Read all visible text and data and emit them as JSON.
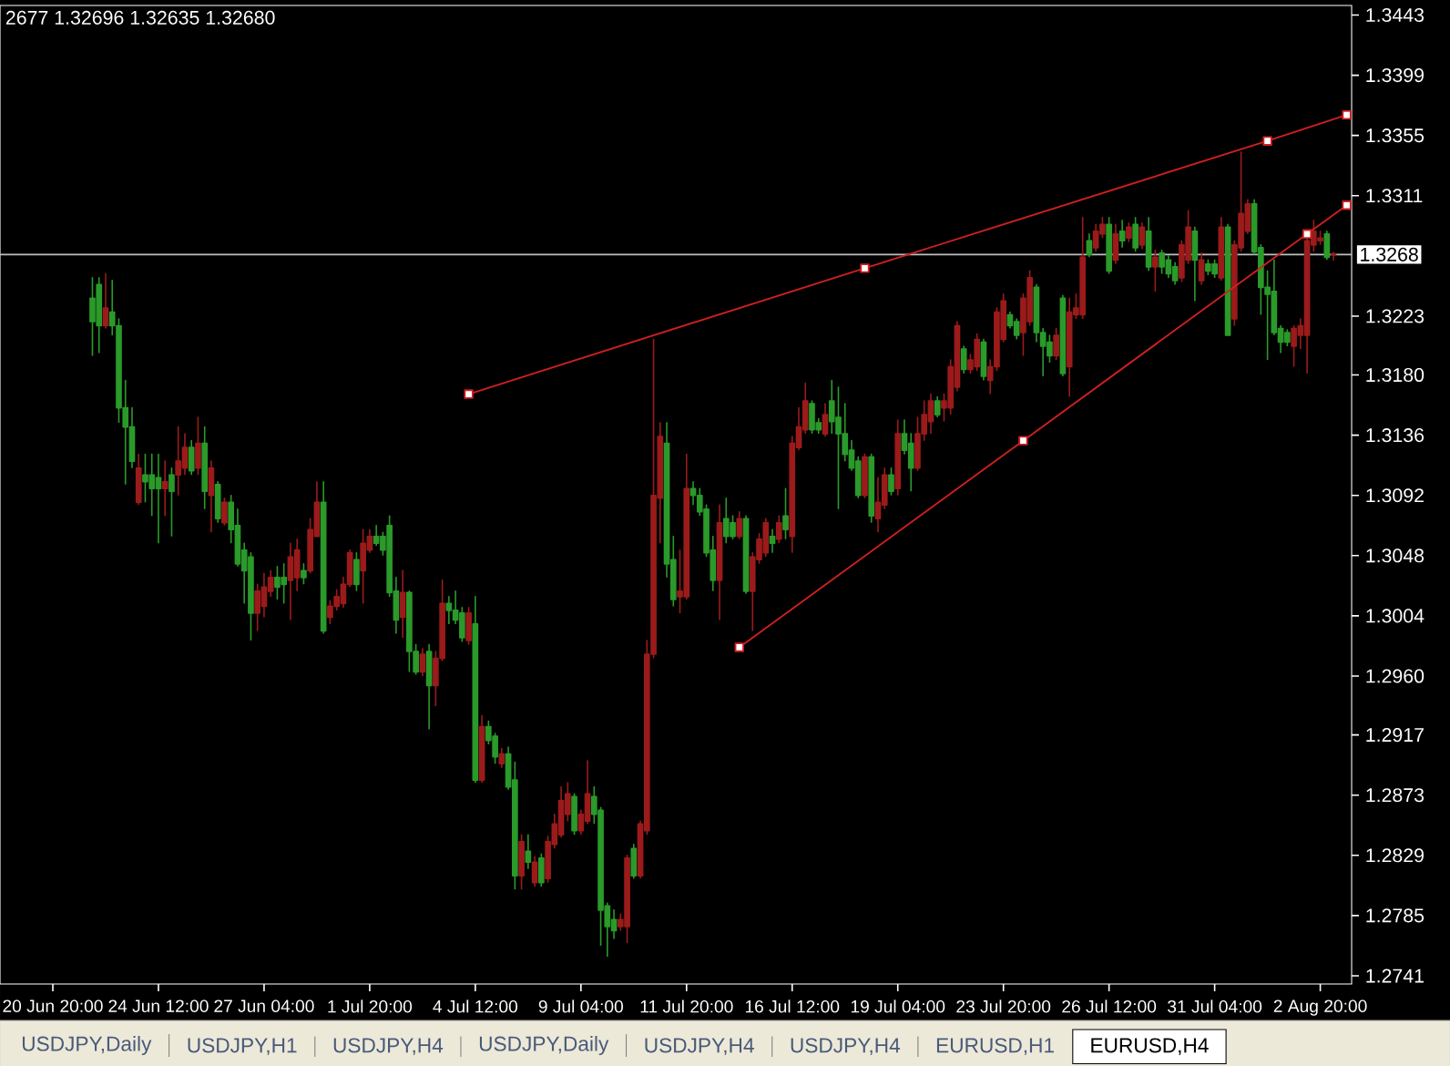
{
  "chart_data": {
    "type": "candlestick",
    "categories": [
      "20 Jun 20:00",
      null,
      null,
      null,
      null,
      null,
      null,
      null,
      null,
      null,
      null,
      null,
      null,
      null,
      null,
      null,
      "24 Jun 12:00",
      null,
      null,
      null,
      null,
      null,
      null,
      null,
      null,
      null,
      null,
      null,
      null,
      null,
      null,
      null,
      "27 Jun 04:00",
      null,
      null,
      null,
      null,
      null,
      null,
      null,
      null,
      null,
      null,
      null,
      null,
      null,
      null,
      null,
      "1 Jul 20:00",
      null,
      null,
      null,
      null,
      null,
      null,
      null,
      null,
      null,
      null,
      null,
      null,
      null,
      null,
      null,
      "4 Jul 12:00",
      null,
      null,
      null,
      null,
      null,
      null,
      null,
      null,
      null,
      null,
      null,
      null,
      null,
      null,
      null,
      "9 Jul 04:00",
      null,
      null,
      null,
      null,
      null,
      null,
      null,
      null,
      null,
      null,
      null,
      null,
      null,
      null,
      null,
      "11 Jul 20:00",
      null,
      null,
      null,
      null,
      null,
      null,
      null,
      null,
      null,
      null,
      null,
      null,
      null,
      null,
      null,
      "16 Jul 12:00",
      null,
      null,
      null,
      null,
      null,
      null,
      null,
      null,
      null,
      null,
      null,
      null,
      null,
      null,
      null,
      "19 Jul 04:00",
      null,
      null,
      null,
      null,
      null,
      null,
      null,
      null,
      null,
      null,
      null,
      null,
      null,
      null,
      null,
      "23 Jul 20:00",
      null,
      null,
      null,
      null,
      null,
      null,
      null,
      null,
      null,
      null,
      null,
      null,
      null,
      null,
      null,
      "26 Jul 12:00",
      null,
      null,
      null,
      null,
      null,
      null,
      null,
      null,
      null,
      null,
      null,
      null,
      null,
      null,
      null,
      "31 Jul 04:00",
      null,
      null,
      null,
      null,
      null,
      null,
      null,
      null,
      null,
      null,
      null,
      null,
      null,
      null,
      null,
      "2 Aug 20:00",
      null,
      null,
      null,
      null
    ],
    "ohlc": [
      null,
      null,
      null,
      null,
      null,
      null,
      [
        1.3236,
        1.3251,
        1.3194,
        1.3219
      ],
      [
        1.3246,
        1.3251,
        1.3196,
        1.3216
      ],
      [
        1.3216,
        1.3254,
        1.3214,
        1.3229
      ],
      [
        1.3226,
        1.3249,
        1.3209,
        1.3216
      ],
      [
        1.3216,
        1.3221,
        1.3145,
        1.3156
      ],
      [
        1.3156,
        1.3176,
        1.31,
        1.3142
      ],
      [
        1.3142,
        1.3156,
        1.3112,
        1.3117
      ],
      [
        1.3087,
        1.3122,
        1.3085,
        1.3112
      ],
      [
        1.3107,
        1.3122,
        1.3087,
        1.3102
      ],
      [
        1.3107,
        1.3122,
        1.3077,
        1.3097
      ],
      [
        1.3105,
        1.3122,
        1.3057,
        1.3097
      ],
      [
        1.3097,
        1.3117,
        1.3077,
        1.3102
      ],
      [
        1.3107,
        1.3112,
        1.3062,
        1.3095
      ],
      [
        1.3107,
        1.3142,
        1.3092,
        1.3117
      ],
      [
        1.3112,
        1.3137,
        1.3107,
        1.3127
      ],
      [
        1.3127,
        1.3132,
        1.3107,
        1.311
      ],
      [
        1.3112,
        1.3149,
        1.3107,
        1.313
      ],
      [
        1.313,
        1.3142,
        1.3082,
        1.3095
      ],
      [
        1.3092,
        1.3117,
        1.3065,
        1.3112
      ],
      [
        1.31,
        1.3102,
        1.3072,
        1.3075
      ],
      [
        1.3072,
        1.309,
        1.307,
        1.3087
      ],
      [
        1.3087,
        1.3092,
        1.3057,
        1.3067
      ],
      [
        1.307,
        1.3082,
        1.304,
        1.3042
      ],
      [
        1.3052,
        1.3057,
        1.3013,
        1.3037
      ],
      [
        1.3047,
        1.305,
        1.2986,
        1.3006
      ],
      [
        1.3006,
        1.3027,
        1.2993,
        1.3022
      ],
      [
        1.3011,
        1.3035,
        1.3003,
        1.3025
      ],
      [
        1.3022,
        1.3037,
        1.3018,
        1.3032
      ],
      [
        1.3032,
        1.304,
        1.3016,
        1.3025
      ],
      [
        1.3032,
        1.3042,
        1.3013,
        1.3027
      ],
      [
        1.303,
        1.3057,
        1.3001,
        1.3047
      ],
      [
        1.3032,
        1.306,
        1.3022,
        1.3052
      ],
      [
        1.3037,
        1.3042,
        1.3027,
        1.3032
      ],
      [
        1.3037,
        1.3075,
        1.3035,
        1.3067
      ],
      [
        1.3062,
        1.3102,
        1.3062,
        1.3087
      ],
      [
        1.3087,
        1.3102,
        1.2991,
        1.2993
      ],
      [
        1.3003,
        1.3015,
        1.2998,
        1.3011
      ],
      [
        1.3011,
        1.3023,
        1.3008,
        1.3018
      ],
      [
        1.3013,
        1.3032,
        1.301,
        1.3027
      ],
      [
        1.3027,
        1.3052,
        1.3025,
        1.305
      ],
      [
        1.3045,
        1.305,
        1.3022,
        1.3027
      ],
      [
        1.3037,
        1.3067,
        1.3013,
        1.3057
      ],
      [
        1.3052,
        1.3067,
        1.305,
        1.3062
      ],
      [
        1.3062,
        1.307,
        1.3055,
        1.3057
      ],
      [
        1.3062,
        1.3065,
        1.3048,
        1.3052
      ],
      [
        1.307,
        1.3077,
        1.3018,
        1.3021
      ],
      [
        1.3022,
        1.3032,
        1.2991,
        1.3001
      ],
      [
        1.3003,
        1.3037,
        1.2988,
        1.3021
      ],
      [
        1.3021,
        1.3022,
        1.2963,
        1.2978
      ],
      [
        1.2978,
        1.2983,
        1.2961,
        1.2963
      ],
      [
        1.2963,
        1.298,
        1.296,
        1.2976
      ],
      [
        1.2978,
        1.2983,
        1.2921,
        1.2953
      ],
      [
        1.2953,
        1.2978,
        1.2938,
        1.2973
      ],
      [
        1.2973,
        1.303,
        1.2971,
        1.3013
      ],
      [
        1.3013,
        1.3018,
        1.2998,
        1.3008
      ],
      [
        1.3008,
        1.3022,
        1.2998,
        1.3001
      ],
      [
        1.3006,
        1.301,
        1.2985,
        1.2988
      ],
      [
        1.2986,
        1.301,
        1.2983,
        1.3006
      ],
      [
        1.2998,
        1.3018,
        1.2882,
        1.2884
      ],
      [
        1.2884,
        1.2931,
        1.2882,
        1.2923
      ],
      [
        1.2923,
        1.2927,
        1.291,
        1.2913
      ],
      [
        1.2916,
        1.2918,
        1.2896,
        1.2901
      ],
      [
        1.2896,
        1.2907,
        1.2893,
        1.2903
      ],
      [
        1.2903,
        1.2908,
        1.2877,
        1.2879
      ],
      [
        1.2884,
        1.2897,
        1.2804,
        1.2814
      ],
      [
        1.2814,
        1.2844,
        1.2804,
        1.2839
      ],
      [
        1.2832,
        1.2844,
        1.2819,
        1.2824
      ],
      [
        1.2809,
        1.2828,
        1.2806,
        1.2824
      ],
      [
        1.2827,
        1.283,
        1.2806,
        1.2809
      ],
      [
        1.2812,
        1.2843,
        1.2809,
        1.2839
      ],
      [
        1.2837,
        1.2859,
        1.2834,
        1.2852
      ],
      [
        1.2844,
        1.2879,
        1.2842,
        1.2869
      ],
      [
        1.2859,
        1.2882,
        1.2854,
        1.2874
      ],
      [
        1.2872,
        1.2874,
        1.2844,
        1.2847
      ],
      [
        1.2847,
        1.2862,
        1.2844,
        1.2859
      ],
      [
        1.2854,
        1.2898,
        1.2852,
        1.2874
      ],
      [
        1.2872,
        1.2879,
        1.2852,
        1.2859
      ],
      [
        1.2862,
        1.2864,
        1.2763,
        1.2789
      ],
      [
        1.2792,
        1.2794,
        1.2755,
        1.2777
      ],
      [
        1.2782,
        1.2789,
        1.2768,
        1.2774
      ],
      [
        1.2777,
        1.2786,
        1.2774,
        1.2782
      ],
      [
        1.2777,
        1.2829,
        1.2765,
        1.2827
      ],
      [
        1.2834,
        1.2837,
        1.2812,
        1.2814
      ],
      [
        1.2814,
        1.2854,
        1.2812,
        1.2852
      ],
      [
        1.2847,
        1.2986,
        1.2844,
        1.2976
      ],
      [
        1.2976,
        1.3206,
        1.2973,
        1.3092
      ],
      [
        1.309,
        1.3145,
        1.3057,
        1.3135
      ],
      [
        1.313,
        1.3145,
        1.3032,
        1.3042
      ],
      [
        1.3045,
        1.3062,
        1.3011,
        1.3016
      ],
      [
        1.3018,
        1.3052,
        1.3006,
        1.3022
      ],
      [
        1.3018,
        1.3122,
        1.3016,
        1.3097
      ],
      [
        1.3097,
        1.3102,
        1.3085,
        1.3092
      ],
      [
        1.3092,
        1.3097,
        1.3077,
        1.308
      ],
      [
        1.3082,
        1.3085,
        1.3047,
        1.305
      ],
      [
        1.3052,
        1.3062,
        1.3022,
        1.303
      ],
      [
        1.303,
        1.3085,
        1.3001,
        1.3072
      ],
      [
        1.3075,
        1.309,
        1.3057,
        1.3062
      ],
      [
        1.3072,
        1.3077,
        1.306,
        1.3062
      ],
      [
        1.3062,
        1.308,
        1.306,
        1.3075
      ],
      [
        1.3075,
        1.3077,
        1.302,
        1.3022
      ],
      [
        1.3022,
        1.305,
        1.2993,
        1.3047
      ],
      [
        1.3045,
        1.3064,
        1.3042,
        1.306
      ],
      [
        1.305,
        1.3075,
        1.3047,
        1.3072
      ],
      [
        1.3062,
        1.3067,
        1.305,
        1.3057
      ],
      [
        1.306,
        1.3077,
        1.3057,
        1.3072
      ],
      [
        1.3077,
        1.3097,
        1.306,
        1.3067
      ],
      [
        1.3062,
        1.3135,
        1.305,
        1.313
      ],
      [
        1.3127,
        1.3156,
        1.3125,
        1.3142
      ],
      [
        1.314,
        1.3174,
        1.3137,
        1.3161
      ],
      [
        1.3159,
        1.3161,
        1.3137,
        1.314
      ],
      [
        1.3145,
        1.3148,
        1.3137,
        1.314
      ],
      [
        1.3137,
        1.3159,
        1.3135,
        1.3151
      ],
      [
        1.3161,
        1.3176,
        1.3137,
        1.3146
      ],
      [
        1.3149,
        1.3171,
        1.3082,
        1.3137
      ],
      [
        1.3137,
        1.3159,
        1.3117,
        1.3122
      ],
      [
        1.3125,
        1.3132,
        1.311,
        1.3112
      ],
      [
        1.3117,
        1.312,
        1.309,
        1.3092
      ],
      [
        1.3092,
        1.3122,
        1.309,
        1.312
      ],
      [
        1.312,
        1.3122,
        1.3072,
        1.3077
      ],
      [
        1.3075,
        1.3105,
        1.3065,
        1.3087
      ],
      [
        1.3085,
        1.3112,
        1.3082,
        1.3107
      ],
      [
        1.3107,
        1.3112,
        1.3092,
        1.3095
      ],
      [
        1.3097,
        1.3147,
        1.3092,
        1.3137
      ],
      [
        1.3137,
        1.3147,
        1.3122,
        1.3125
      ],
      [
        1.313,
        1.3137,
        1.3095,
        1.3112
      ],
      [
        1.3112,
        1.3149,
        1.311,
        1.3137
      ],
      [
        1.3137,
        1.3161,
        1.3132,
        1.3151
      ],
      [
        1.3146,
        1.3166,
        1.3137,
        1.3161
      ],
      [
        1.3161,
        1.3164,
        1.3149,
        1.3151
      ],
      [
        1.3156,
        1.3166,
        1.3146,
        1.3161
      ],
      [
        1.3156,
        1.3191,
        1.3151,
        1.3186
      ],
      [
        1.3171,
        1.3219,
        1.3168,
        1.3216
      ],
      [
        1.3199,
        1.3201,
        1.3181,
        1.3184
      ],
      [
        1.3184,
        1.3195,
        1.3181,
        1.3191
      ],
      [
        1.3186,
        1.321,
        1.3183,
        1.3206
      ],
      [
        1.3204,
        1.3206,
        1.3176,
        1.3179
      ],
      [
        1.3176,
        1.3191,
        1.3166,
        1.3186
      ],
      [
        1.3186,
        1.3229,
        1.3183,
        1.3226
      ],
      [
        1.3206,
        1.3239,
        1.3204,
        1.3234
      ],
      [
        1.3224,
        1.3226,
        1.3214,
        1.3216
      ],
      [
        1.3219,
        1.3221,
        1.3206,
        1.3209
      ],
      [
        1.3211,
        1.3239,
        1.3194,
        1.3236
      ],
      [
        1.3219,
        1.3256,
        1.3216,
        1.3251
      ],
      [
        1.3244,
        1.3246,
        1.3204,
        1.3211
      ],
      [
        1.3211,
        1.3214,
        1.3179,
        1.3201
      ],
      [
        1.3204,
        1.3209,
        1.3189,
        1.3194
      ],
      [
        1.3194,
        1.3214,
        1.3191,
        1.3209
      ],
      [
        1.3236,
        1.3238,
        1.3179,
        1.3181
      ],
      [
        1.3186,
        1.3236,
        1.3164,
        1.3226
      ],
      [
        1.3224,
        1.3239,
        1.3221,
        1.3229
      ],
      [
        1.3224,
        1.3295,
        1.3221,
        1.3266
      ],
      [
        1.3278,
        1.3283,
        1.3266,
        1.3268
      ],
      [
        1.3273,
        1.329,
        1.327,
        1.3285
      ],
      [
        1.3283,
        1.3295,
        1.328,
        1.329
      ],
      [
        1.329,
        1.3295,
        1.3254,
        1.3256
      ],
      [
        1.3264,
        1.329,
        1.3261,
        1.3283
      ],
      [
        1.3285,
        1.3293,
        1.3273,
        1.3278
      ],
      [
        1.328,
        1.3291,
        1.3277,
        1.3288
      ],
      [
        1.329,
        1.3295,
        1.327,
        1.3273
      ],
      [
        1.3275,
        1.3291,
        1.3272,
        1.3288
      ],
      [
        1.3285,
        1.3295,
        1.3256,
        1.3259
      ],
      [
        1.3259,
        1.3271,
        1.3241,
        1.3266
      ],
      [
        1.3269,
        1.3271,
        1.3254,
        1.3259
      ],
      [
        1.3264,
        1.3267,
        1.3251,
        1.3254
      ],
      [
        1.3259,
        1.3262,
        1.3246,
        1.3249
      ],
      [
        1.3251,
        1.3278,
        1.3248,
        1.3275
      ],
      [
        1.3264,
        1.33,
        1.3261,
        1.3288
      ],
      [
        1.3285,
        1.3288,
        1.3234,
        1.3264
      ],
      [
        1.3249,
        1.3269,
        1.3246,
        1.3264
      ],
      [
        1.3261,
        1.3264,
        1.3253,
        1.3256
      ],
      [
        1.3261,
        1.3264,
        1.3251,
        1.3254
      ],
      [
        1.3251,
        1.3295,
        1.3249,
        1.3288
      ],
      [
        1.3288,
        1.329,
        1.3209,
        1.3209
      ],
      [
        1.3221,
        1.3278,
        1.3216,
        1.3275
      ],
      [
        1.3273,
        1.3343,
        1.327,
        1.3298
      ],
      [
        1.3285,
        1.3308,
        1.3283,
        1.3305
      ],
      [
        1.3305,
        1.3308,
        1.3268,
        1.327
      ],
      [
        1.3273,
        1.3275,
        1.3224,
        1.3244
      ],
      [
        1.3244,
        1.3256,
        1.3191,
        1.3239
      ],
      [
        1.3241,
        1.3264,
        1.3209,
        1.3211
      ],
      [
        1.3214,
        1.3216,
        1.3196,
        1.3204
      ],
      [
        1.3211,
        1.3213,
        1.3201,
        1.3204
      ],
      [
        1.3201,
        1.3216,
        1.3186,
        1.3214
      ],
      [
        1.3209,
        1.3221,
        1.3199,
        1.3216
      ],
      [
        1.3209,
        1.3283,
        1.3181,
        1.3278
      ],
      [
        1.3275,
        1.3293,
        1.327,
        1.3285
      ],
      [
        1.3278,
        1.3285,
        1.3275,
        1.328
      ],
      [
        1.3283,
        1.3285,
        1.3264,
        1.3266
      ],
      [
        1.32677,
        1.32696,
        1.32635,
        1.3268
      ],
      null,
      null
    ],
    "colors": [
      null,
      null,
      null,
      null,
      null,
      null,
      "#2a9a2a",
      "#2a9a2a",
      "#9b1b1b",
      "#2a9a2a",
      "#2a9a2a",
      "#2a9a2a",
      "#2a9a2a",
      "#9b1b1b",
      "#2a9a2a",
      "#2a9a2a",
      "#2a9a2a",
      "#9b1b1b",
      "#2a9a2a",
      "#9b1b1b",
      "#9b1b1b",
      "#2a9a2a",
      "#9b1b1b",
      "#2a9a2a",
      "#9b1b1b",
      "#2a9a2a",
      "#9b1b1b",
      "#2a9a2a",
      "#2a9a2a",
      "#2a9a2a",
      "#2a9a2a",
      "#9b1b1b",
      "#9b1b1b",
      "#9b1b1b",
      "#2a9a2a",
      "#2a9a2a",
      "#9b1b1b",
      "#9b1b1b",
      "#2a9a2a",
      "#9b1b1b",
      "#9b1b1b",
      "#2a9a2a",
      "#9b1b1b",
      "#9b1b1b",
      "#9b1b1b",
      "#9b1b1b",
      "#2a9a2a",
      "#9b1b1b",
      "#9b1b1b",
      "#2a9a2a",
      "#2a9a2a",
      "#2a9a2a",
      "#2a9a2a",
      "#9b1b1b",
      "#2a9a2a",
      "#2a9a2a",
      "#9b1b1b",
      "#2a9a2a",
      "#9b1b1b",
      "#9b1b1b",
      "#2a9a2a",
      "#2a9a2a",
      "#2a9a2a",
      "#9b1b1b",
      "#2a9a2a",
      "#9b1b1b",
      "#2a9a2a",
      "#2a9a2a",
      "#9b1b1b",
      "#2a9a2a",
      "#2a9a2a",
      "#9b1b1b",
      "#2a9a2a",
      "#9b1b1b",
      "#2a9a2a",
      "#9b1b1b",
      "#9b1b1b",
      "#9b1b1b",
      "#9b1b1b",
      "#2a9a2a",
      "#9b1b1b",
      "#9b1b1b",
      "#2a9a2a",
      "#2a9a2a",
      "#2a9a2a",
      "#2a9a2a",
      "#9b1b1b",
      "#9b1b1b",
      "#2a9a2a",
      "#9b1b1b",
      "#9b1b1b",
      "#9b1b1b",
      "#9b1b1b",
      "#2a9a2a",
      "#2a9a2a",
      "#9b1b1b",
      "#9b1b1b",
      "#2a9a2a",
      "#2a9a2a",
      "#2a9a2a",
      "#2a9a2a",
      "#9b1b1b",
      "#2a9a2a",
      "#2a9a2a",
      "#9b1b1b",
      "#2a9a2a",
      "#9b1b1b",
      "#9b1b1b",
      "#9b1b1b",
      "#2a9a2a",
      "#9b1b1b",
      "#2a9a2a",
      "#9b1b1b",
      "#9b1b1b",
      "#9b1b1b",
      "#2a9a2a",
      "#2a9a2a",
      "#9b1b1b",
      "#2a9a2a",
      "#2a9a2a",
      "#2a9a2a",
      "#2a9a2a",
      "#2a9a2a",
      "#9b1b1b",
      "#2a9a2a",
      "#9b1b1b",
      "#9b1b1b",
      "#2a9a2a",
      "#9b1b1b",
      "#2a9a2a",
      "#2a9a2a",
      "#9b1b1b",
      "#9b1b1b",
      "#9b1b1b",
      "#2a9a2a",
      "#9b1b1b",
      "#9b1b1b",
      "#9b1b1b",
      "#2a9a2a",
      "#9b1b1b",
      "#9b1b1b",
      "#2a9a2a",
      "#9b1b1b",
      "#9b1b1b",
      "#9b1b1b",
      "#2a9a2a",
      "#2a9a2a",
      "#9b1b1b",
      "#9b1b1b",
      "#2a9a2a",
      "#2a9a2a",
      "#2a9a2a",
      "#9b1b1b",
      "#2a9a2a",
      "#9b1b1b",
      "#9b1b1b",
      "#9b1b1b",
      "#2a9a2a",
      "#9b1b1b",
      "#9b1b1b",
      "#2a9a2a",
      "#9b1b1b",
      "#2a9a2a",
      "#9b1b1b",
      "#2a9a2a",
      "#9b1b1b",
      "#2a9a2a",
      "#9b1b1b",
      "#2a9a2a",
      "#2a9a2a",
      "#2a9a2a",
      "#9b1b1b",
      "#9b1b1b",
      "#2a9a2a",
      "#9b1b1b",
      "#2a9a2a",
      "#2a9a2a",
      "#9b1b1b",
      "#2a9a2a",
      "#9b1b1b",
      "#9b1b1b",
      "#9b1b1b",
      "#2a9a2a",
      "#2a9a2a",
      "#2a9a2a",
      "#2a9a2a",
      "#2a9a2a",
      "#2a9a2a",
      "#9b1b1b",
      "#9b1b1b",
      "#9b1b1b",
      "#9b1b1b",
      "#9b1b1b",
      "#2a9a2a",
      "#9b1b1b",
      null,
      null
    ],
    "series": [
      {
        "type": "line",
        "color": "#d02020",
        "values": [
          null,
          null,
          null,
          null,
          null,
          null,
          null,
          null,
          null,
          null,
          null,
          null,
          null,
          null,
          null,
          null,
          null,
          null,
          null,
          null,
          null,
          null,
          null,
          null,
          null,
          null,
          null,
          null,
          null,
          null,
          null,
          null,
          null,
          null,
          null,
          null,
          null,
          null,
          null,
          null,
          null,
          null,
          null,
          null,
          null,
          null,
          null,
          null,
          null,
          null,
          null,
          null,
          null,
          null,
          null,
          null,
          null,
          null,
          null,
          null,
          null,
          null,
          null,
          1.3166,
          null,
          null,
          null,
          null,
          null,
          null,
          null,
          null,
          null,
          null,
          null,
          null,
          null,
          null,
          null,
          null,
          null,
          null,
          null,
          null,
          null,
          null,
          null,
          null,
          null,
          null,
          null,
          null,
          null,
          null,
          null,
          null,
          null,
          null,
          null,
          null,
          null,
          null,
          null,
          null,
          null,
          null,
          null,
          null,
          null,
          null,
          null,
          null,
          null,
          null,
          null,
          null,
          null,
          null,
          null,
          null,
          null,
          null,
          null,
          1.3258,
          null,
          null,
          null,
          null,
          null,
          null,
          null,
          null,
          null,
          null,
          null,
          null,
          null,
          null,
          null,
          null,
          null,
          null,
          null,
          null,
          null,
          null,
          null,
          null,
          null,
          null,
          null,
          null,
          null,
          null,
          null,
          null,
          null,
          null,
          null,
          null,
          null,
          null,
          null,
          null,
          null,
          null,
          null,
          null,
          null,
          null,
          null,
          null,
          null,
          null,
          null,
          null,
          null,
          null,
          null,
          null,
          null,
          null,
          null,
          null,
          1.3351,
          null,
          null,
          null,
          null,
          null,
          null,
          null,
          null,
          null,
          null,
          null,
          1.337
        ]
      },
      {
        "type": "line",
        "color": "#d02020",
        "values": [
          null,
          null,
          null,
          null,
          null,
          null,
          null,
          null,
          null,
          null,
          null,
          null,
          null,
          null,
          null,
          null,
          null,
          null,
          null,
          null,
          null,
          null,
          null,
          null,
          null,
          null,
          null,
          null,
          null,
          null,
          null,
          null,
          null,
          null,
          null,
          null,
          null,
          null,
          null,
          null,
          null,
          null,
          null,
          null,
          null,
          null,
          null,
          null,
          null,
          null,
          null,
          null,
          null,
          null,
          null,
          null,
          null,
          null,
          null,
          null,
          null,
          null,
          null,
          null,
          null,
          null,
          null,
          null,
          null,
          null,
          null,
          null,
          null,
          null,
          null,
          null,
          null,
          null,
          null,
          null,
          null,
          null,
          null,
          null,
          null,
          null,
          null,
          null,
          null,
          null,
          null,
          null,
          null,
          null,
          null,
          null,
          null,
          null,
          null,
          null,
          null,
          null,
          null,
          null,
          1.2981,
          null,
          null,
          null,
          null,
          null,
          null,
          null,
          null,
          null,
          null,
          null,
          null,
          null,
          null,
          null,
          null,
          null,
          null,
          null,
          null,
          null,
          null,
          null,
          null,
          null,
          null,
          null,
          null,
          null,
          null,
          null,
          null,
          null,
          null,
          null,
          null,
          null,
          null,
          null,
          null,
          null,
          null,
          1.3132,
          null,
          null,
          null,
          null,
          null,
          null,
          null,
          null,
          null,
          null,
          null,
          null,
          null,
          null,
          null,
          null,
          null,
          null,
          null,
          null,
          null,
          null,
          null,
          null,
          null,
          null,
          null,
          null,
          null,
          null,
          null,
          null,
          null,
          null,
          null,
          null,
          null,
          null,
          null,
          null,
          null,
          null,
          1.3283,
          null,
          null,
          null,
          null,
          null,
          1.3304
        ]
      }
    ],
    "marker": "square",
    "line_style": "solid",
    "ylim": [
      1.2735,
      1.345
    ],
    "yticks": [
      1.3443,
      1.3399,
      1.3355,
      1.3311,
      1.3223,
      {
        "value": 1.318,
        "label": "1.3180"
      },
      1.3136,
      1.3092,
      1.3048,
      1.3004,
      {
        "value": 1.296,
        "label": "1.2960"
      },
      1.2917,
      1.2873,
      1.2829,
      1.2785,
      1.2741
    ],
    "ref_lines": [
      {
        "axis": "y",
        "value": 1.3268,
        "label": "1.3268",
        "color": "#c0c0c0"
      }
    ],
    "annotations": [
      "2677 1.32696 1.32635 1.32680",
      "USDJPY,Daily",
      "USDJPY,H1",
      "USDJPY,H4",
      "USDJPY,Daily",
      "USDJPY,H4",
      "USDJPY,H4",
      "EURUSD,H1",
      "EURUSD,H4"
    ]
  }
}
